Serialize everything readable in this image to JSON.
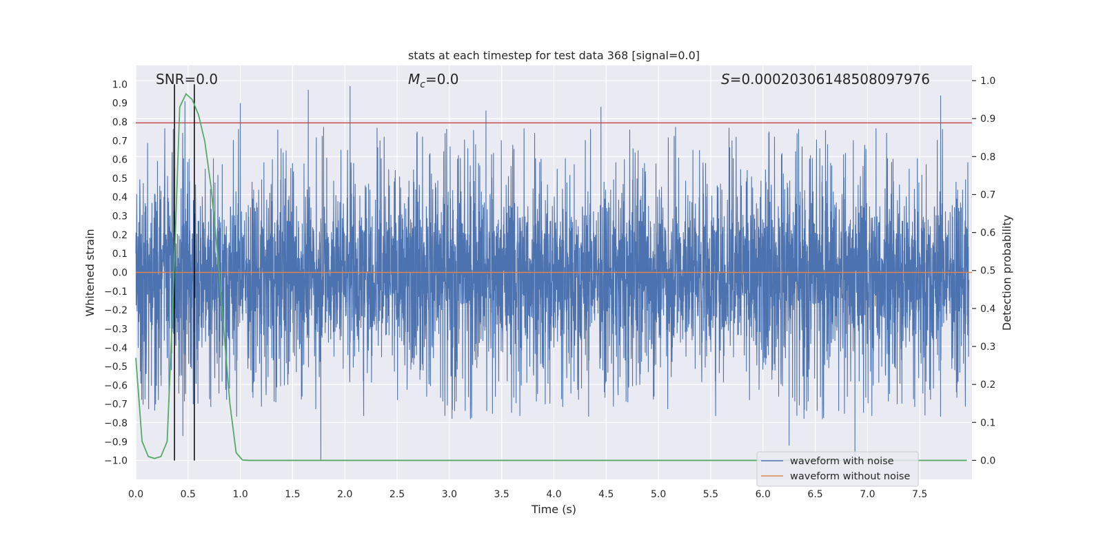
{
  "chart_data": {
    "type": "line",
    "title": "stats at each timestep for test data 368 [signal=0.0]",
    "xlabel": "Time (s)",
    "ylabel_left": "Whitened strain",
    "ylabel_right": "Detection probability",
    "xlim": [
      0.0,
      8.0
    ],
    "ylim_left": [
      -1.1,
      1.1
    ],
    "ylim_right": [
      -0.05,
      1.04
    ],
    "x_ticks": [
      "0.0",
      "0.5",
      "1.0",
      "1.5",
      "2.0",
      "2.5",
      "3.0",
      "3.5",
      "4.0",
      "4.5",
      "5.0",
      "5.5",
      "6.0",
      "6.5",
      "7.0",
      "7.5"
    ],
    "y_ticks_left": [
      "1.0",
      "0.9",
      "0.8",
      "0.7",
      "0.6",
      "0.5",
      "0.4",
      "0.3",
      "0.2",
      "0.1",
      "0.0",
      "−0.1",
      "−0.2",
      "−0.3",
      "−0.4",
      "−0.5",
      "−0.6",
      "−0.7",
      "−0.8",
      "−0.9",
      "−1.0"
    ],
    "y_ticks_right": [
      "1.0",
      "0.9",
      "0.8",
      "0.7",
      "0.6",
      "0.5",
      "0.4",
      "0.3",
      "0.2",
      "0.1",
      "0.0"
    ],
    "grid": true,
    "legend_placement": "lower-right",
    "annotations": {
      "snr": "SNR=0.0",
      "mc_symbol": "M",
      "mc_sub": "c",
      "mc_value": "=0.0",
      "s_symbol": "S",
      "s_value": "=0.00020306148508097976"
    },
    "series": [
      {
        "name": "waveform with noise",
        "color": "#4c72b0",
        "axis": "left",
        "description": "dense noise band roughly between -0.5 and 0.5 with spikes up to about 0.99 and down to -1.0",
        "peaks": [
          [
            0.47,
            0.91
          ],
          [
            1.0,
            0.9
          ],
          [
            1.65,
            0.97
          ],
          [
            2.05,
            0.99
          ],
          [
            3.35,
            0.86
          ],
          [
            4.45,
            0.88
          ],
          [
            7.7,
            0.94
          ]
        ],
        "troughs": [
          [
            0.45,
            -0.87
          ],
          [
            1.77,
            -1.0
          ],
          [
            6.25,
            -0.92
          ],
          [
            6.88,
            -0.98
          ],
          [
            7.55,
            -0.76
          ]
        ]
      },
      {
        "name": "waveform without noise",
        "color": "#dd8452",
        "axis": "left",
        "x": [
          0.0,
          8.0
        ],
        "values": [
          0.0,
          0.0
        ]
      },
      {
        "name": "detection probability",
        "color": "#55a868",
        "axis": "right",
        "x": [
          0.0,
          0.06,
          0.12,
          0.18,
          0.24,
          0.3,
          0.36,
          0.42,
          0.48,
          0.54,
          0.6,
          0.66,
          0.72,
          0.78,
          0.84,
          0.9,
          0.96,
          1.02,
          1.08,
          1.2,
          2.0,
          3.0,
          4.0,
          5.0,
          6.0,
          7.0,
          7.95
        ],
        "values": [
          0.27,
          0.05,
          0.01,
          0.005,
          0.01,
          0.05,
          0.45,
          0.93,
          0.965,
          0.95,
          0.91,
          0.84,
          0.72,
          0.55,
          0.35,
          0.15,
          0.02,
          0.001,
          0.0,
          0.0,
          0.0,
          0.0,
          0.0,
          0.0,
          0.0,
          0.0,
          0.0
        ]
      }
    ],
    "threshold_line": {
      "axis": "left",
      "value": 0.795,
      "color": "#c44e52"
    },
    "vertical_lines": {
      "x": [
        0.37,
        0.56
      ],
      "ymin": -1.0,
      "ymax": 1.0,
      "color": "#000000"
    }
  }
}
